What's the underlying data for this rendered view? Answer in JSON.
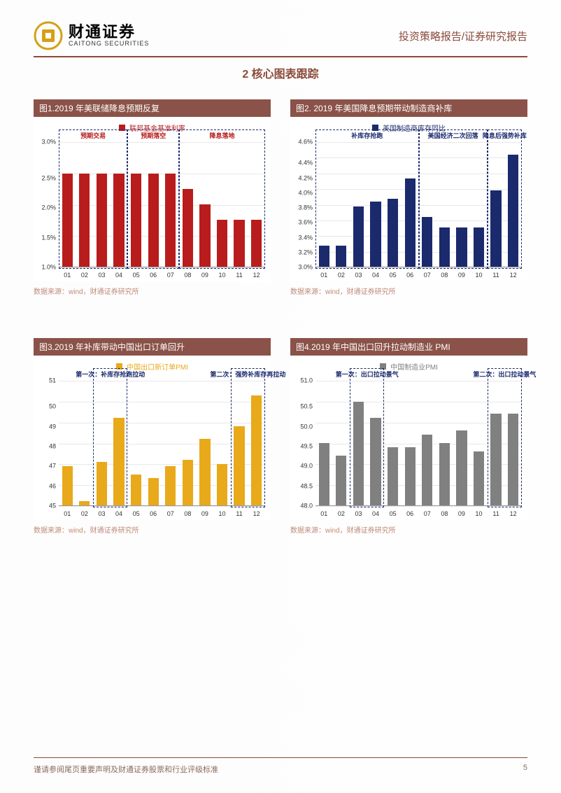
{
  "header": {
    "company_cn": "财通证券",
    "company_en": "CAITONG SECURITIES",
    "right_text": "投资策略报告/证券研究报告"
  },
  "section_title": "2  核心图表跟踪",
  "source_text": "数据来源：wind，财通证券研究所",
  "footer": {
    "disclaimer": "谨请参阅尾页重要声明及财通证券股票和行业评级标准",
    "page_num": "5"
  },
  "chart1": {
    "title": "图1.2019 年美联储降息预期反复",
    "legend": "联邦基金基准利率",
    "legend_color": "#b91c1c",
    "phase_labels": [
      "预期交易",
      "预期落空",
      "降息落地"
    ],
    "phase_label_color": "#b91c1c",
    "categories": [
      "01",
      "02",
      "03",
      "04",
      "05",
      "06",
      "07",
      "08",
      "09",
      "10",
      "11",
      "12"
    ],
    "values": [
      2.5,
      2.5,
      2.5,
      2.5,
      2.5,
      2.5,
      2.5,
      2.25,
      2.0,
      1.75,
      1.75,
      1.75
    ],
    "bar_color": "#b91c1c",
    "ylim": [
      1.0,
      3.0
    ],
    "ytick_step": 0.5,
    "ytick_format": "pct1",
    "phase_boxes": [
      {
        "start": 0,
        "end": 3
      },
      {
        "start": 4,
        "end": 6
      },
      {
        "start": 7,
        "end": 11
      }
    ]
  },
  "chart2": {
    "title": "图2. 2019 年美国降息预期带动制造商补库",
    "legend": "美国制造商库存同比",
    "legend_color": "#1a2a6d",
    "phase_labels": [
      "补库存抢跑",
      "美国经济二次回落",
      "降息后强势补库"
    ],
    "phase_label_color": "#1a2a6d",
    "categories": [
      "01",
      "02",
      "03",
      "04",
      "05",
      "06",
      "07",
      "08",
      "09",
      "10",
      "11",
      "12"
    ],
    "values": [
      3.27,
      3.27,
      3.77,
      3.84,
      3.87,
      4.13,
      3.64,
      3.5,
      3.5,
      3.5,
      3.98,
      4.44
    ],
    "bar_color": "#1a2a6d",
    "ylim": [
      3.0,
      4.6
    ],
    "ytick_step": 0.2,
    "ytick_format": "pct1",
    "phase_boxes": [
      {
        "start": 0,
        "end": 5
      },
      {
        "start": 6,
        "end": 9
      },
      {
        "start": 10,
        "end": 11
      }
    ]
  },
  "chart3": {
    "title": "图3.2019 年补库带动中国出口订单回升",
    "legend": "中国出口新订单PMI",
    "legend_color": "#e8a91a",
    "phase_labels": [
      "第一次：补库存抢跑拉动",
      "第二次：强势补库存再拉动"
    ],
    "phase_label_color": "#1a2a6d",
    "categories": [
      "01",
      "02",
      "03",
      "04",
      "05",
      "06",
      "07",
      "08",
      "09",
      "10",
      "11",
      "12"
    ],
    "values": [
      46.9,
      45.2,
      47.1,
      49.2,
      46.5,
      46.3,
      46.9,
      47.2,
      48.2,
      47.0,
      48.8,
      50.3
    ],
    "bar_color": "#e8a91a",
    "ylim": [
      45.0,
      51.0
    ],
    "ytick_step": 1.0,
    "ytick_format": "int",
    "phase_boxes": [
      {
        "start": 2,
        "end": 3
      },
      {
        "start": 10,
        "end": 11
      }
    ]
  },
  "chart4": {
    "title": "图4.2019 年中国出口回升拉动制造业 PMI",
    "legend": "中国制造业PMI",
    "legend_color": "#808080",
    "phase_labels": [
      "第一次：出口拉动景气",
      "第二次：出口拉动景气"
    ],
    "phase_label_color": "#1a2a6d",
    "categories": [
      "01",
      "02",
      "03",
      "04",
      "05",
      "06",
      "07",
      "08",
      "09",
      "10",
      "11",
      "12"
    ],
    "values": [
      49.5,
      49.2,
      50.5,
      50.1,
      49.4,
      49.4,
      49.7,
      49.5,
      49.8,
      49.3,
      50.2,
      50.2
    ],
    "bar_color": "#808080",
    "ylim": [
      48.0,
      51.0
    ],
    "ytick_step": 0.5,
    "ytick_format": "dec1",
    "phase_boxes": [
      {
        "start": 2,
        "end": 3
      },
      {
        "start": 10,
        "end": 11
      }
    ]
  }
}
